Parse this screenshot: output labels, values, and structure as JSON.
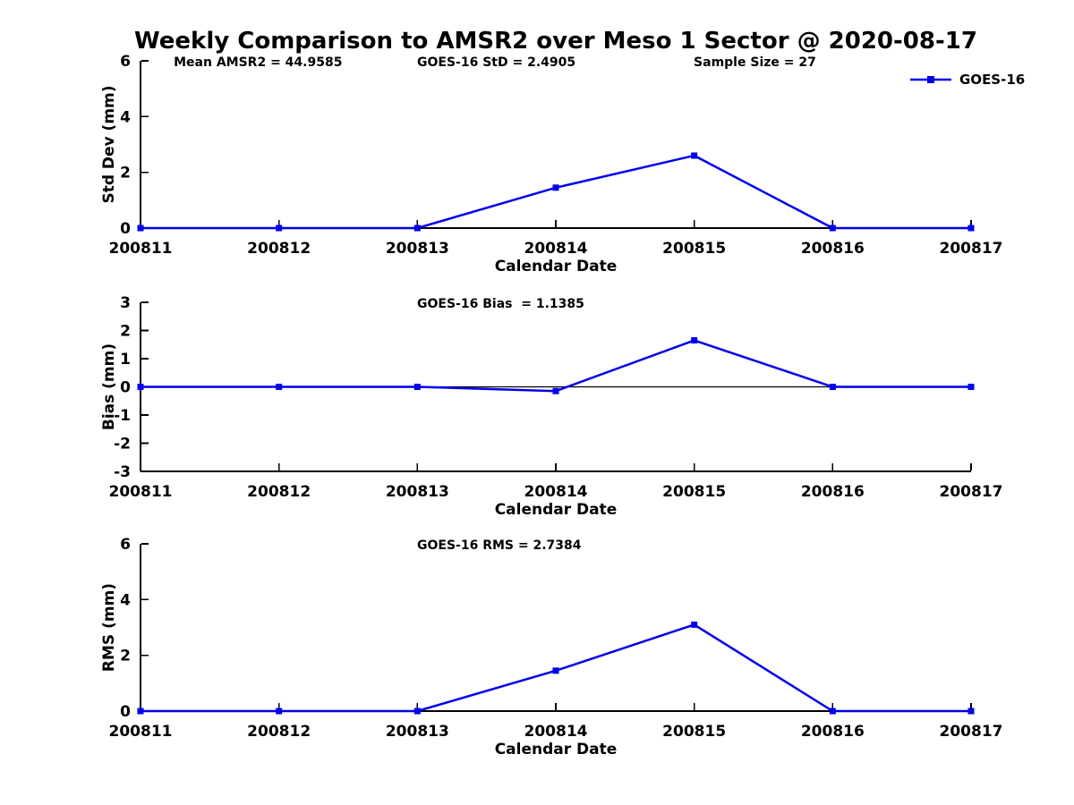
{
  "title": "Weekly Comparison to AMSR2 over Meso 1 Sector @ 2020-08-17",
  "colors": {
    "series": "#0000ee",
    "axis": "#000000",
    "text": "#000000",
    "background": "#ffffff"
  },
  "legend": {
    "label": "GOES-16"
  },
  "chart_data": [
    {
      "id": "std-dev",
      "type": "line",
      "xlabel": "Calendar Date",
      "ylabel": "Std Dev (mm)",
      "categories": [
        "200811",
        "200812",
        "200813",
        "200814",
        "200815",
        "200816",
        "200817"
      ],
      "series": [
        {
          "name": "GOES-16",
          "values": [
            0,
            0,
            0,
            1.45,
            2.6,
            0,
            0
          ]
        }
      ],
      "ylim": [
        0,
        6
      ],
      "yticks": [
        0,
        2,
        4,
        6
      ],
      "yticklabels": [
        "0",
        "2",
        "4",
        "6"
      ],
      "annotations": [
        "Mean AMSR2 = 44.9585",
        "GOES-16 StD = 2.4905",
        "Sample Size = 27"
      ],
      "zero_line": false,
      "legend": {
        "label": "GOES-16",
        "position": "top-right"
      },
      "grid": false
    },
    {
      "id": "bias",
      "type": "line",
      "xlabel": "Calendar Date",
      "ylabel": "Bias (mm)",
      "categories": [
        "200811",
        "200812",
        "200813",
        "200814",
        "200815",
        "200816",
        "200817"
      ],
      "series": [
        {
          "name": "GOES-16",
          "values": [
            0,
            0,
            0,
            -0.15,
            1.65,
            0,
            0
          ]
        }
      ],
      "ylim": [
        -3,
        3
      ],
      "yticks": [
        3,
        2,
        1,
        0,
        -1,
        -2,
        -3
      ],
      "yticklabels": [
        "3",
        "2",
        "1",
        "0",
        "-1",
        "-2",
        "-3"
      ],
      "annotations": [
        "GOES-16 Bias  = 1.1385"
      ],
      "zero_line": true,
      "legend": null,
      "grid": false
    },
    {
      "id": "rms",
      "type": "line",
      "xlabel": "Calendar Date",
      "ylabel": "RMS (mm)",
      "categories": [
        "200811",
        "200812",
        "200813",
        "200814",
        "200815",
        "200816",
        "200817"
      ],
      "series": [
        {
          "name": "GOES-16",
          "values": [
            0,
            0,
            0,
            1.45,
            3.1,
            0,
            0
          ]
        }
      ],
      "ylim": [
        0,
        6
      ],
      "yticks": [
        0,
        2,
        4,
        6
      ],
      "yticklabels": [
        "0",
        "2",
        "4",
        "6"
      ],
      "annotations": [
        "GOES-16 RMS = 2.7384"
      ],
      "zero_line": false,
      "legend": null,
      "grid": false
    }
  ]
}
